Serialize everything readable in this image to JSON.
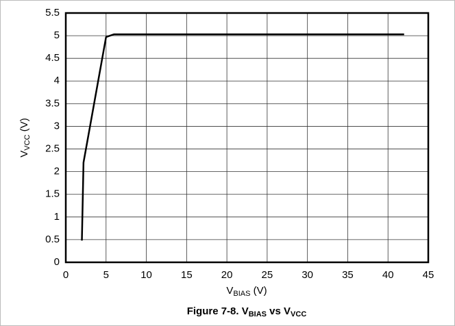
{
  "chart_data": {
    "type": "line",
    "title_parts": [
      "Figure 7-8. V",
      "BIAS",
      " vs V",
      "VCC"
    ],
    "x_label_parts": [
      "V",
      "BIAS",
      " (V)"
    ],
    "y_label_parts": [
      "V",
      "VCC",
      " (V)"
    ],
    "x": [
      2,
      2.2,
      5,
      6,
      42
    ],
    "values": [
      0.48,
      2.2,
      4.97,
      5.03,
      5.03
    ],
    "color": "#000000",
    "xlim": [
      0,
      45
    ],
    "xticks": [
      0,
      5,
      10,
      15,
      20,
      25,
      30,
      35,
      40,
      45
    ],
    "ylim": [
      0,
      5.5
    ],
    "yticks": [
      0,
      0.5,
      1,
      1.5,
      2,
      2.5,
      3,
      3.5,
      4,
      4.5,
      5,
      5.5
    ],
    "grid": true
  }
}
